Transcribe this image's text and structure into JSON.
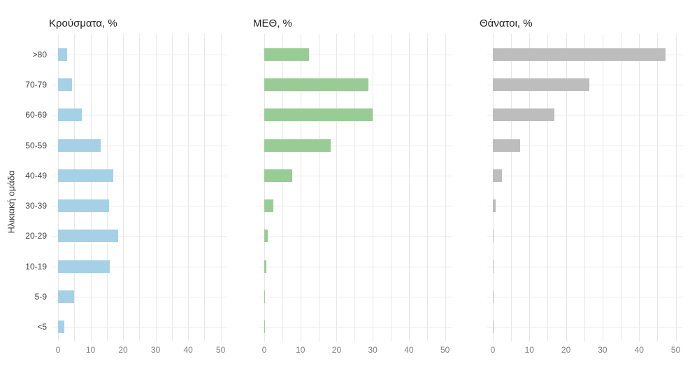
{
  "y_axis_title": "Ηλικιακή ομάδα",
  "categories": [
    ">80",
    "70-79",
    "60-69",
    "50-59",
    "40-49",
    "30-39",
    "20-29",
    "10-19",
    "5-9",
    "<5"
  ],
  "x_tick_labels": [
    "0",
    "10",
    "20",
    "30",
    "40",
    "50"
  ],
  "x_tick_values": [
    0,
    10,
    20,
    30,
    40,
    50
  ],
  "colors": {
    "cases_bar": "#a5d0e6",
    "icu_bar": "#99cc94",
    "deaths_bar": "#bdbdbd",
    "gridline": "#e7e7e7",
    "title_text": "#1f1f1f",
    "category_text": "#404040",
    "tick_text": "#7f7f7f"
  },
  "chart_data": [
    {
      "type": "bar",
      "orientation": "horizontal",
      "title": "Κρούσματα, %",
      "categories": [
        ">80",
        "70-79",
        "60-69",
        "50-59",
        "40-49",
        "30-39",
        "20-29",
        "10-19",
        "5-9",
        "<5"
      ],
      "values": [
        2.9,
        4.2,
        7.4,
        13.0,
        16.9,
        15.6,
        18.4,
        15.9,
        4.9,
        2.0
      ],
      "color": "#a5d0e6",
      "xlabel": "",
      "ylabel": "Ηλικιακή ομάδα",
      "xlim": [
        0,
        52
      ],
      "grid_step": 5,
      "legend": "none"
    },
    {
      "type": "bar",
      "orientation": "horizontal",
      "title": "ΜΕΘ, %",
      "categories": [
        ">80",
        "70-79",
        "60-69",
        "50-59",
        "40-49",
        "30-39",
        "20-29",
        "10-19",
        "5-9",
        "<5"
      ],
      "values": [
        12.4,
        28.8,
        29.9,
        18.4,
        7.7,
        2.6,
        0.9,
        0.5,
        0.2,
        0.2
      ],
      "color": "#99cc94",
      "xlabel": "",
      "ylabel": "",
      "xlim": [
        0,
        52
      ],
      "grid_step": 5,
      "legend": "none"
    },
    {
      "type": "bar",
      "orientation": "horizontal",
      "title": "Θάνατοι, %",
      "categories": [
        ">80",
        "70-79",
        "60-69",
        "50-59",
        "40-49",
        "30-39",
        "20-29",
        "10-19",
        "5-9",
        "<5"
      ],
      "values": [
        47.2,
        26.4,
        16.8,
        7.5,
        2.4,
        0.7,
        0.1,
        0.15,
        0.05,
        0.1
      ],
      "color": "#bdbdbd",
      "xlabel": "",
      "ylabel": "",
      "xlim": [
        0,
        52
      ],
      "grid_step": 5,
      "legend": "none"
    }
  ]
}
